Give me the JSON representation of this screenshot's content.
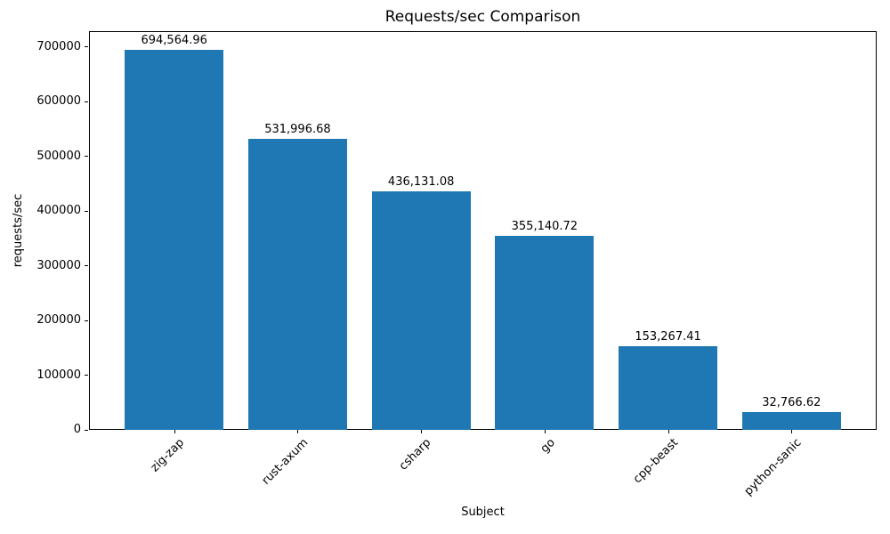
{
  "chart_data": {
    "type": "bar",
    "title": "Requests/sec Comparison",
    "xlabel": "Subject",
    "ylabel": "requests/sec",
    "categories": [
      "zig-zap",
      "rust-axum",
      "csharp",
      "go",
      "cpp-beast",
      "python-sanic"
    ],
    "values": [
      694564.96,
      531996.68,
      436131.08,
      355140.72,
      153267.41,
      32766.62
    ],
    "value_labels": [
      "694,564.96",
      "531,996.68",
      "436,131.08",
      "355,140.72",
      "153,267.41",
      "32,766.62"
    ],
    "bar_color": "#1f77b4",
    "ylim": [
      0,
      729293
    ],
    "yticks": [
      0,
      100000,
      200000,
      300000,
      400000,
      500000,
      600000,
      700000
    ],
    "ytick_labels": [
      "0",
      "100000",
      "200000",
      "300000",
      "400000",
      "500000",
      "600000",
      "700000"
    ],
    "xtick_rotation": 45,
    "bar_width_fraction": 0.8,
    "grid": false,
    "legend": null
  }
}
